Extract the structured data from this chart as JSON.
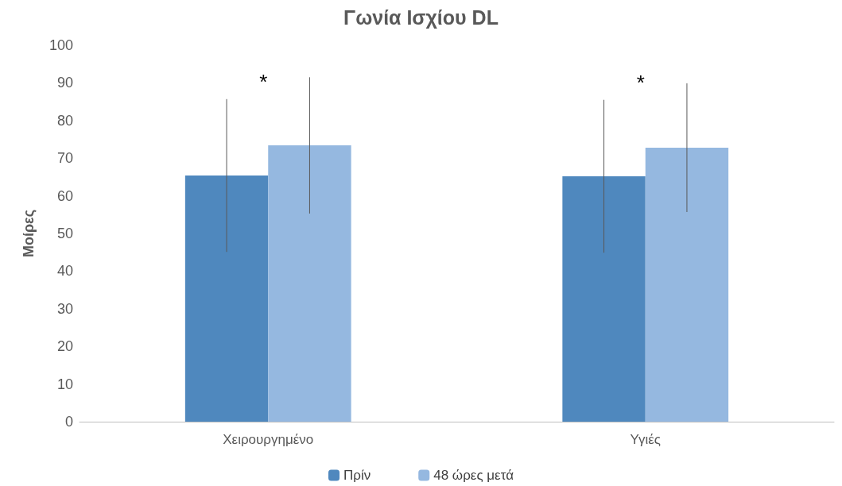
{
  "chart_data": {
    "type": "bar",
    "title": "Γωνία Ισχίου DL",
    "ylabel": "Μοίρες",
    "categories": [
      "Χειρουργημένο",
      "Υγιές"
    ],
    "series": [
      {
        "name": "Πρίν",
        "color": "#4f88be",
        "values": [
          65.4,
          65.2
        ],
        "errors": [
          20.3,
          20.3
        ]
      },
      {
        "name": "48 ώρες μετά",
        "color": "#95b8e0",
        "values": [
          73.4,
          72.8
        ],
        "errors": [
          18.1,
          17.1
        ]
      }
    ],
    "ylim": [
      0,
      100
    ],
    "yticks": [
      0,
      10,
      20,
      30,
      40,
      50,
      60,
      70,
      80,
      90,
      100
    ],
    "grid": false,
    "legend": "bottom",
    "annotations": [
      "*",
      "*"
    ]
  }
}
